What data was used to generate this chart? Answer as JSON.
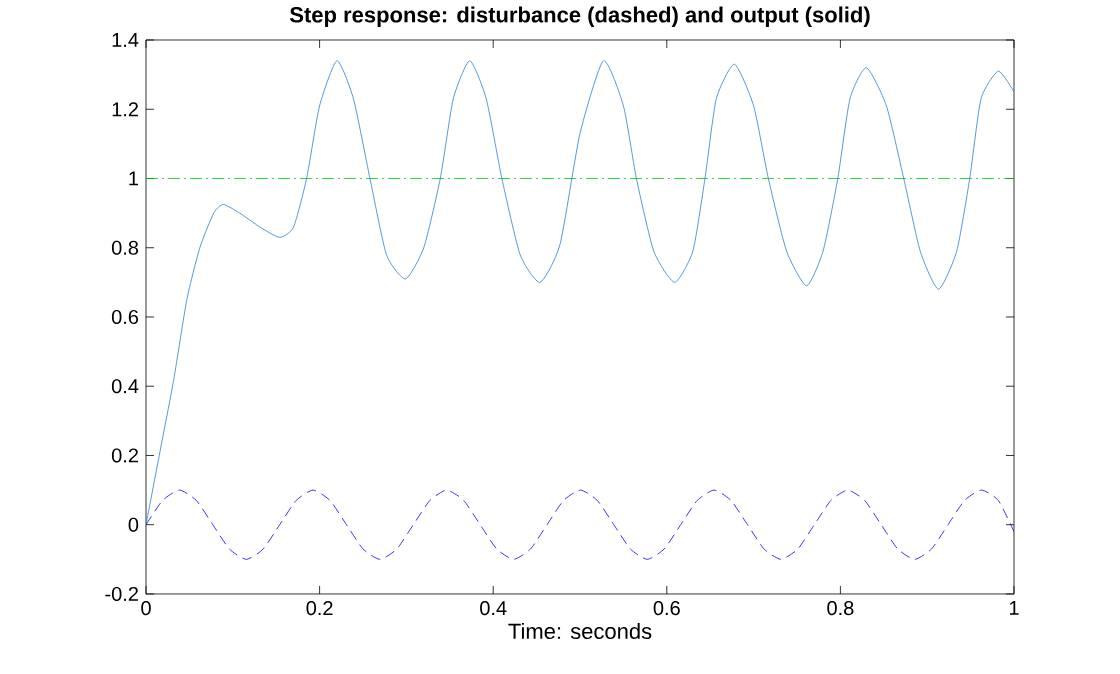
{
  "chart_data": {
    "type": "line",
    "title": "Step response: disturbance (dashed) and  output (solid)",
    "xlabel": "Time: seconds",
    "xlim": [
      0,
      1
    ],
    "ylim": [
      -0.2,
      1.4
    ],
    "xticks": [
      0,
      0.2,
      0.4,
      0.6,
      0.8,
      1
    ],
    "yticks": [
      -0.2,
      0,
      0.2,
      0.4,
      0.6,
      0.8,
      1,
      1.2,
      1.4
    ],
    "grid": false,
    "ref_lines": [
      {
        "axis": "y",
        "value": 1,
        "color": "#00cc00",
        "line_style": "dashdot"
      }
    ],
    "series": [
      {
        "color": "#2a7fd0",
        "line_style": "solid",
        "x": [
          0,
          0.016,
          0.032,
          0.047,
          0.062,
          0.078,
          0.089,
          0.108,
          0.131,
          0.154,
          0.17,
          0.185,
          0.2,
          0.22,
          0.239,
          0.258,
          0.277,
          0.299,
          0.32,
          0.339,
          0.354,
          0.373,
          0.392,
          0.41,
          0.431,
          0.454,
          0.477,
          0.5,
          0.527,
          0.55,
          0.565,
          0.585,
          0.609,
          0.63,
          0.644,
          0.657,
          0.678,
          0.7,
          0.717,
          0.738,
          0.761,
          0.78,
          0.797,
          0.811,
          0.83,
          0.853,
          0.873,
          0.892,
          0.913,
          0.934,
          0.949,
          0.962,
          0.982,
          1.0
        ],
        "values": [
          0,
          0.21,
          0.42,
          0.65,
          0.8,
          0.9,
          0.925,
          0.9,
          0.86,
          0.83,
          0.86,
          1.0,
          1.21,
          1.34,
          1.23,
          1.0,
          0.78,
          0.71,
          0.8,
          1.0,
          1.23,
          1.34,
          1.23,
          1.0,
          0.78,
          0.7,
          0.81,
          1.13,
          1.34,
          1.21,
          1.0,
          0.79,
          0.7,
          0.79,
          1.0,
          1.23,
          1.33,
          1.21,
          1.0,
          0.79,
          0.69,
          0.79,
          1.0,
          1.23,
          1.32,
          1.21,
          1.0,
          0.79,
          0.68,
          0.79,
          1.0,
          1.23,
          1.31,
          1.25
        ]
      },
      {
        "color": "#0000ff",
        "line_style": "dashed",
        "x": [
          0,
          0.019,
          0.0385,
          0.058,
          0.077,
          0.096,
          0.1155,
          0.135,
          0.154,
          0.173,
          0.1925,
          0.212,
          0.231,
          0.25,
          0.2695,
          0.289,
          0.308,
          0.327,
          0.3465,
          0.366,
          0.385,
          0.404,
          0.4235,
          0.443,
          0.462,
          0.481,
          0.5005,
          0.52,
          0.539,
          0.558,
          0.5775,
          0.597,
          0.616,
          0.635,
          0.6545,
          0.674,
          0.693,
          0.712,
          0.7315,
          0.751,
          0.77,
          0.789,
          0.8085,
          0.828,
          0.847,
          0.866,
          0.8855,
          0.905,
          0.924,
          0.943,
          0.9625,
          0.982,
          1.0
        ],
        "values": [
          0,
          0.07,
          0.1,
          0.07,
          0,
          -0.07,
          -0.1,
          -0.07,
          0,
          0.07,
          0.1,
          0.07,
          0,
          -0.07,
          -0.1,
          -0.07,
          0,
          0.07,
          0.1,
          0.07,
          0,
          -0.07,
          -0.1,
          -0.07,
          0,
          0.07,
          0.1,
          0.07,
          0,
          -0.07,
          -0.1,
          -0.07,
          0,
          0.07,
          0.1,
          0.07,
          0,
          -0.07,
          -0.1,
          -0.07,
          0,
          0.07,
          0.1,
          0.07,
          0,
          -0.07,
          -0.1,
          -0.07,
          0,
          0.07,
          0.1,
          0.07,
          -0.02
        ]
      }
    ]
  }
}
